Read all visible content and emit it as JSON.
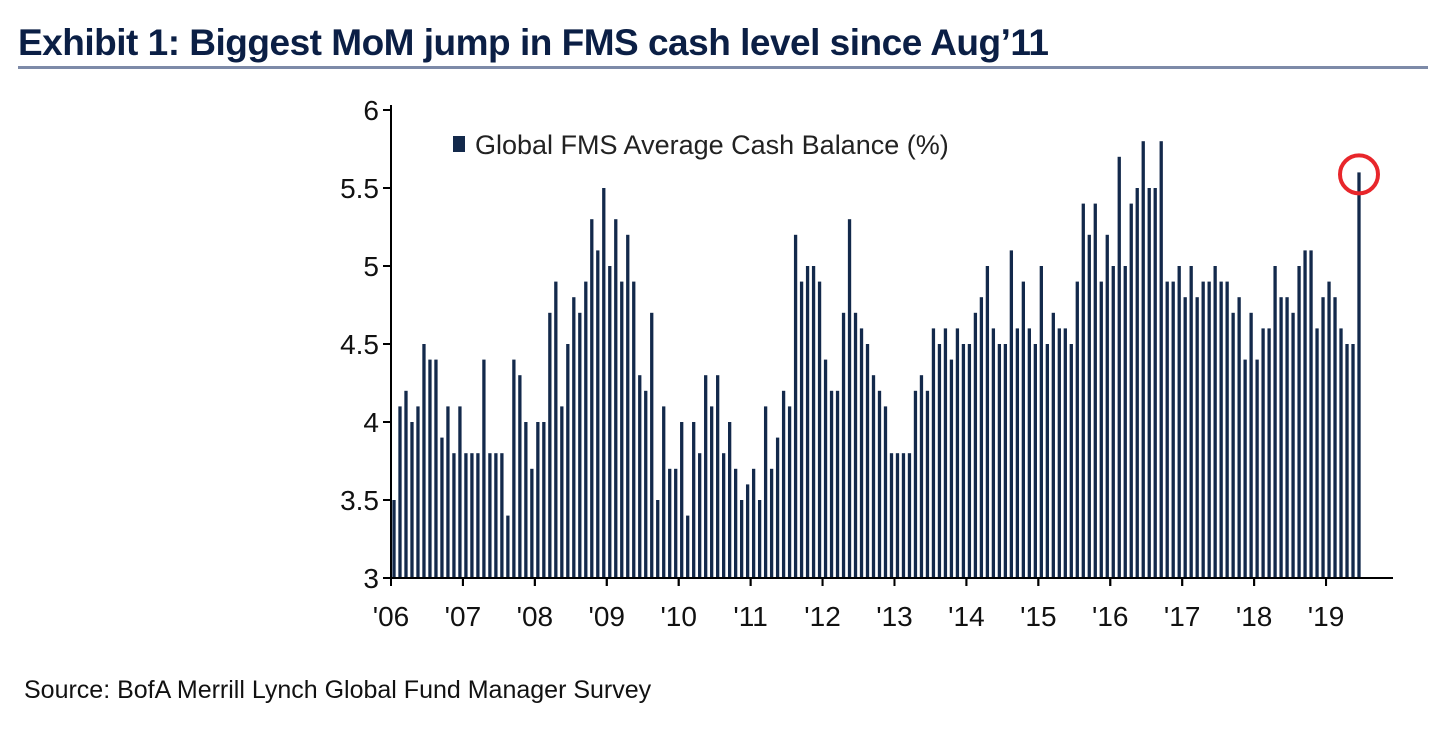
{
  "title": "Exhibit 1: Biggest MoM jump in FMS cash level since Aug’11",
  "source": "Source:   BofA Merrill Lynch Global Fund Manager Survey",
  "colors": {
    "bar": "#13294b",
    "highlight": "#e8262b",
    "axis": "#000000",
    "rule": "#7d8aa8"
  },
  "chart_data": {
    "type": "bar",
    "title": "Exhibit 1: Biggest MoM jump in FMS cash level since Aug’11",
    "xlabel": "",
    "ylabel": "",
    "ylim": [
      3,
      6
    ],
    "yticks": [
      "3",
      "3.5",
      "4",
      "4.5",
      "5",
      "5.5",
      "6"
    ],
    "xticks": [
      "'06",
      "'07",
      "'08",
      "'09",
      "'10",
      "'11",
      "'12",
      "'13",
      "'14",
      "'15",
      "'16",
      "'17",
      "'18",
      "'19"
    ],
    "legend": [
      "Global FMS Average Cash Balance (%)"
    ],
    "legend_position": "top-left",
    "grid": false,
    "highlight": "latest value circled",
    "start": "2006-01",
    "series": [
      {
        "name": "Global FMS Average Cash Balance (%)",
        "values": [
          3.5,
          4.1,
          4.2,
          4.0,
          4.1,
          4.5,
          4.4,
          4.4,
          3.9,
          4.1,
          3.8,
          4.1,
          3.8,
          3.8,
          3.8,
          4.4,
          3.8,
          3.8,
          3.8,
          3.4,
          4.4,
          4.3,
          4.0,
          3.7,
          4.0,
          4.0,
          4.7,
          4.9,
          4.1,
          4.5,
          4.8,
          4.7,
          4.9,
          5.3,
          5.1,
          5.5,
          5.0,
          5.3,
          4.9,
          5.2,
          4.9,
          4.3,
          4.2,
          4.7,
          3.5,
          4.1,
          3.7,
          3.7,
          4.0,
          3.4,
          4.0,
          3.8,
          4.3,
          4.1,
          4.3,
          3.8,
          4.0,
          3.7,
          3.5,
          3.6,
          3.7,
          3.5,
          4.1,
          3.7,
          3.9,
          4.2,
          4.1,
          5.2,
          4.9,
          5.0,
          5.0,
          4.9,
          4.4,
          4.2,
          4.2,
          4.7,
          5.3,
          4.7,
          4.6,
          4.5,
          4.3,
          4.2,
          4.1,
          3.8,
          3.8,
          3.8,
          3.8,
          4.2,
          4.3,
          4.2,
          4.6,
          4.5,
          4.6,
          4.4,
          4.6,
          4.5,
          4.5,
          4.7,
          4.8,
          5.0,
          4.6,
          4.5,
          4.5,
          5.1,
          4.6,
          4.9,
          4.6,
          4.5,
          5.0,
          4.5,
          4.7,
          4.6,
          4.6,
          4.5,
          4.9,
          5.4,
          5.2,
          5.4,
          4.9,
          5.2,
          5.0,
          5.7,
          5.0,
          5.4,
          5.5,
          5.8,
          5.5,
          5.5,
          5.8,
          4.9,
          4.9,
          5.0,
          4.8,
          5.0,
          4.8,
          4.9,
          4.9,
          5.0,
          4.9,
          4.9,
          4.7,
          4.8,
          4.4,
          4.7,
          4.4,
          4.6,
          4.6,
          5.0,
          4.8,
          4.8,
          4.7,
          5.0,
          5.1,
          5.1,
          4.6,
          4.8,
          4.9,
          4.8,
          4.6,
          4.5,
          4.5,
          5.6
        ]
      }
    ]
  }
}
